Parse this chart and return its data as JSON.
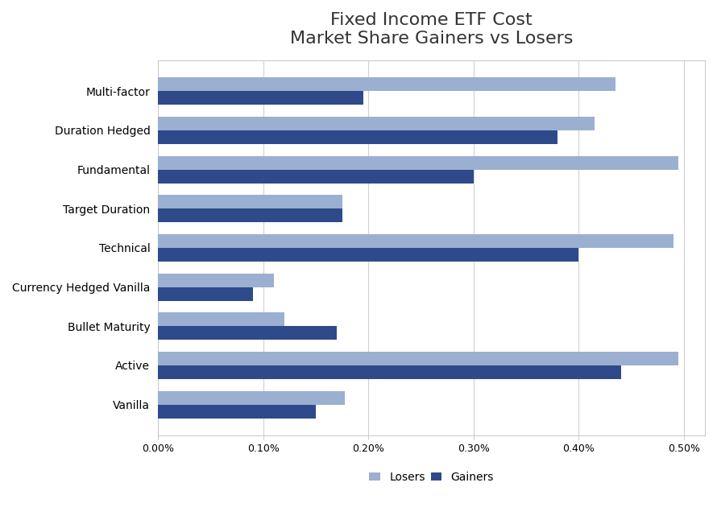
{
  "title_line1": "Fixed Income ETF Cost",
  "title_line2": "Market Share Gainers vs Losers",
  "categories": [
    "Vanilla",
    "Active",
    "Bullet Maturity",
    "Currency Hedged Vanilla",
    "Technical",
    "Target Duration",
    "Fundamental",
    "Duration Hedged",
    "Multi-factor"
  ],
  "losers": [
    0.178,
    0.495,
    0.12,
    0.11,
    0.49,
    0.175,
    0.495,
    0.415,
    0.435
  ],
  "gainers": [
    0.15,
    0.44,
    0.17,
    0.09,
    0.4,
    0.175,
    0.3,
    0.38,
    0.195
  ],
  "loser_color": "#9bafd1",
  "gainer_color": "#2e4a8b",
  "background_color": "#ffffff",
  "xlim": [
    0,
    0.52
  ],
  "xtick_vals": [
    0.0,
    0.1,
    0.2,
    0.3,
    0.4,
    0.5
  ],
  "xtick_labels": [
    "0.00%",
    "0.10%",
    "0.20%",
    "0.30%",
    "0.40%",
    "0.50%"
  ],
  "legend_labels": [
    "Losers",
    "Gainers"
  ],
  "bar_height": 0.35,
  "title_fontsize": 16,
  "legend_fontsize": 10
}
